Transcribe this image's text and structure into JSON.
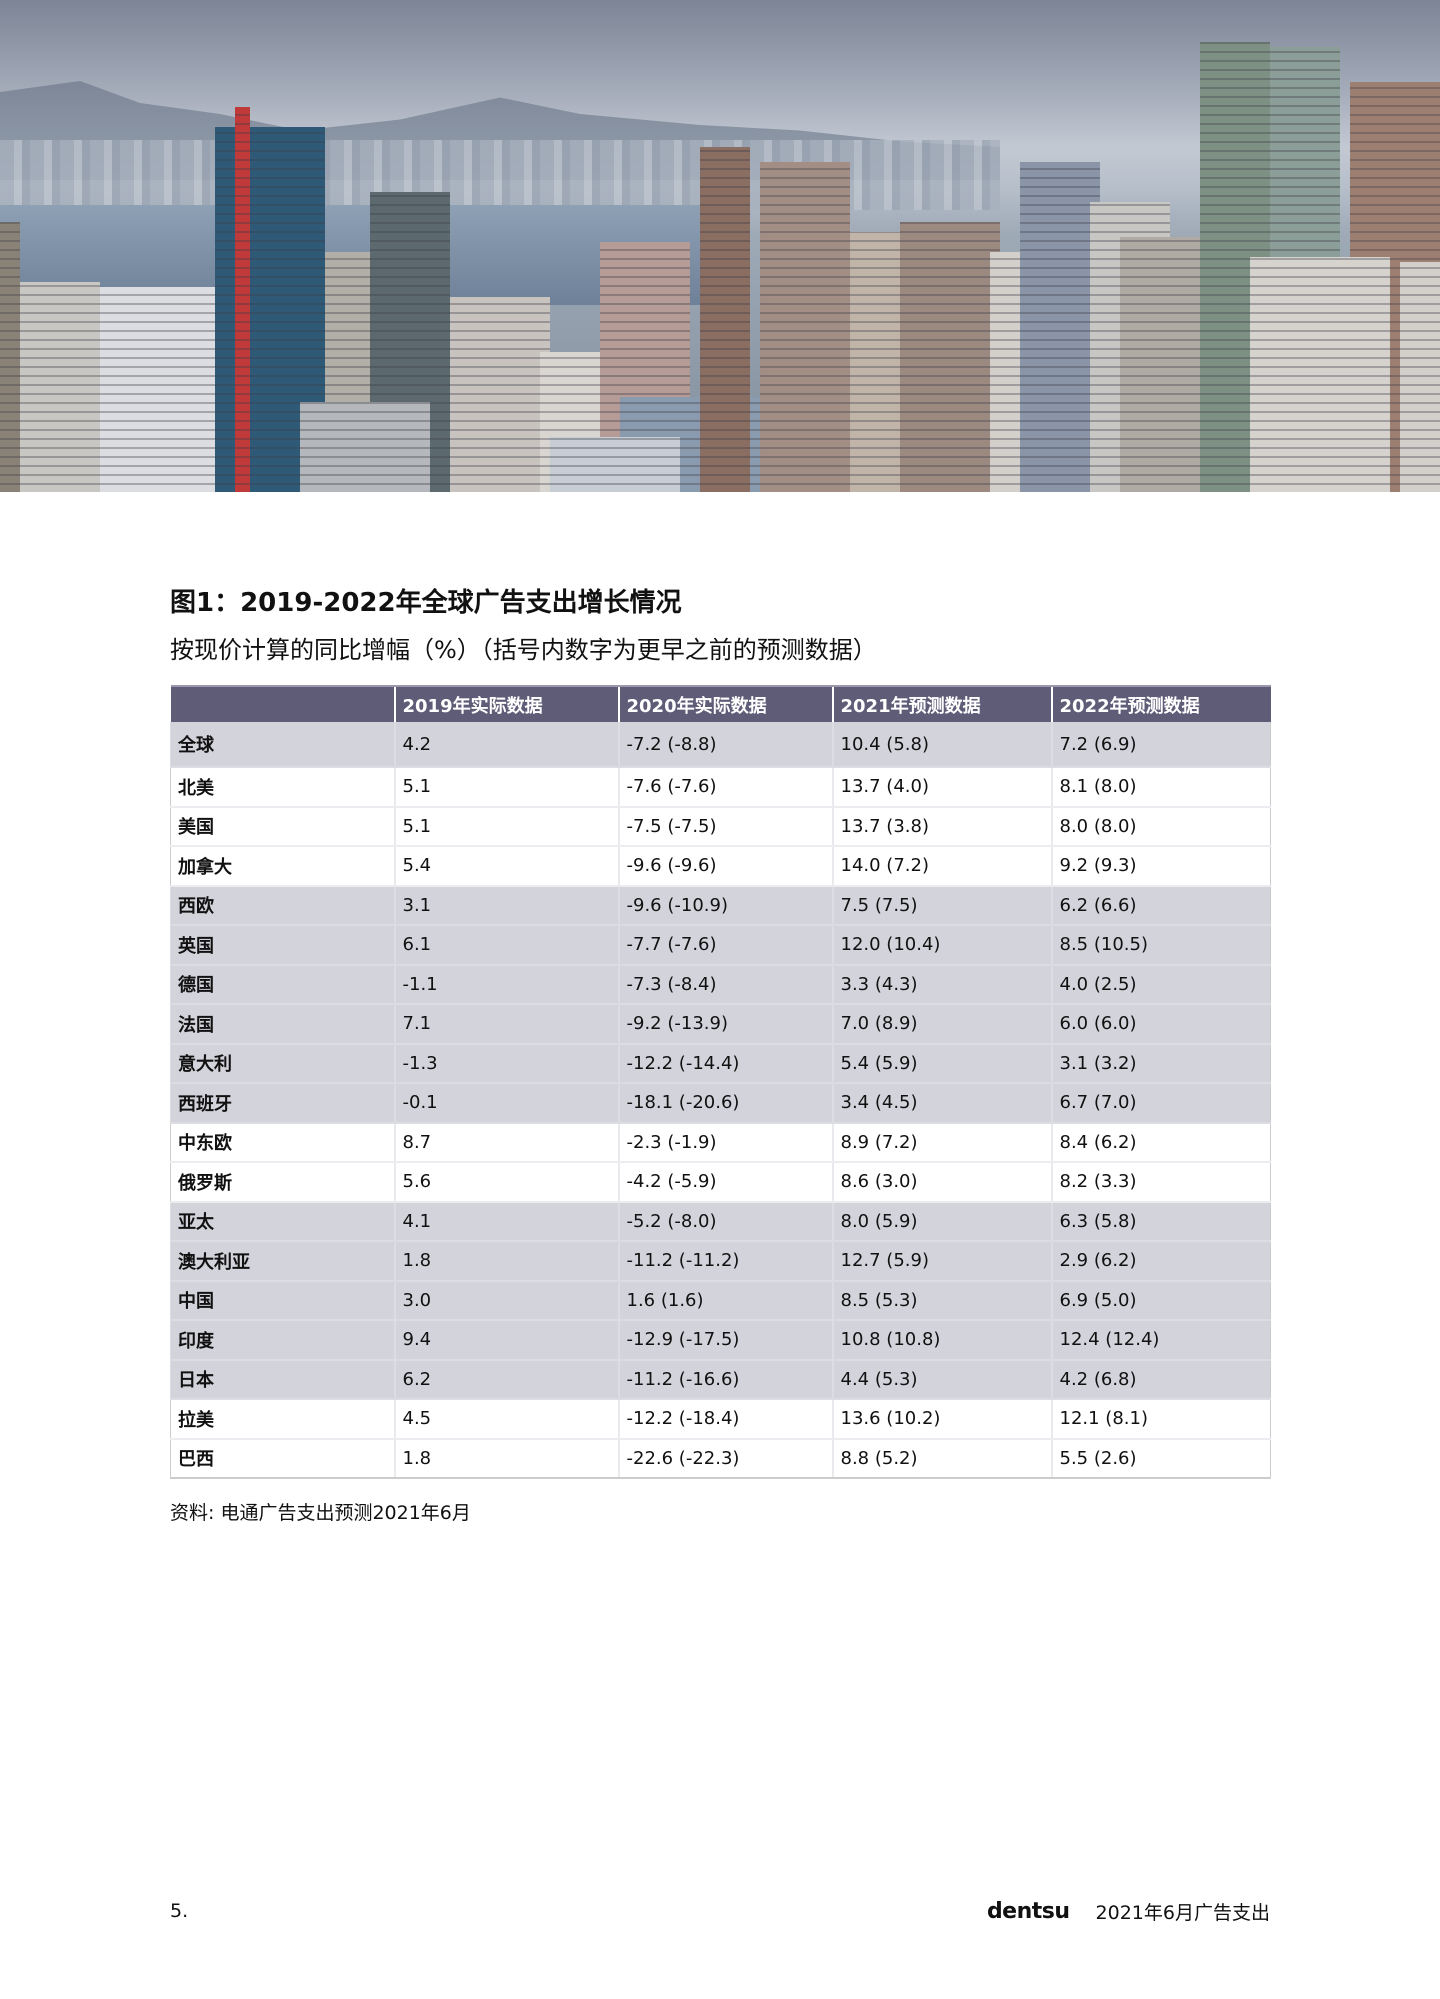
{
  "hero_image": {
    "description_icon": "city-skyline-photo"
  },
  "figure": {
    "title": "图1：2019-2022年全球广告支出增长情况",
    "subtitle": "按现价计算的同比增幅（%）（括号内数字为更早之前的预测数据）"
  },
  "table": {
    "headers": [
      "",
      "2019年实际数据",
      "2020年实际数据",
      "2021年预测数据",
      "2022年预测数据"
    ],
    "rows": [
      {
        "region": "全球",
        "shaded": true,
        "values": [
          "4.2",
          "-7.2 (-8.8)",
          "10.4 (5.8)",
          "7.2 (6.9)"
        ]
      },
      {
        "region": "北美",
        "shaded": false,
        "values": [
          "5.1",
          "-7.6 (-7.6)",
          "13.7 (4.0)",
          "8.1 (8.0)"
        ]
      },
      {
        "region": "美国",
        "shaded": false,
        "values": [
          "5.1",
          "-7.5 (-7.5)",
          "13.7 (3.8)",
          "8.0 (8.0)"
        ]
      },
      {
        "region": "加拿大",
        "shaded": false,
        "values": [
          "5.4",
          "-9.6 (-9.6)",
          "14.0 (7.2)",
          "9.2 (9.3)"
        ]
      },
      {
        "region": "西欧",
        "shaded": true,
        "values": [
          "3.1",
          "-9.6 (-10.9)",
          "7.5 (7.5)",
          "6.2 (6.6)"
        ]
      },
      {
        "region": "英国",
        "shaded": true,
        "values": [
          "6.1",
          "-7.7 (-7.6)",
          "12.0 (10.4)",
          "8.5 (10.5)"
        ]
      },
      {
        "region": "德国",
        "shaded": true,
        "values": [
          "-1.1",
          "-7.3 (-8.4)",
          "3.3 (4.3)",
          "4.0 (2.5)"
        ]
      },
      {
        "region": "法国",
        "shaded": true,
        "values": [
          "7.1",
          "-9.2 (-13.9)",
          "7.0 (8.9)",
          "6.0 (6.0)"
        ]
      },
      {
        "region": "意大利",
        "shaded": true,
        "values": [
          "-1.3",
          "-12.2 (-14.4)",
          "5.4 (5.9)",
          "3.1 (3.2)"
        ]
      },
      {
        "region": "西班牙",
        "shaded": true,
        "values": [
          "-0.1",
          "-18.1 (-20.6)",
          "3.4 (4.5)",
          "6.7 (7.0)"
        ]
      },
      {
        "region": "中东欧",
        "shaded": false,
        "values": [
          "8.7",
          "-2.3 (-1.9)",
          "8.9 (7.2)",
          "8.4 (6.2)"
        ]
      },
      {
        "region": "俄罗斯",
        "shaded": false,
        "values": [
          "5.6",
          "-4.2 (-5.9)",
          "8.6 (3.0)",
          "8.2 (3.3)"
        ]
      },
      {
        "region": "亚太",
        "shaded": true,
        "values": [
          "4.1",
          "-5.2 (-8.0)",
          "8.0 (5.9)",
          "6.3 (5.8)"
        ]
      },
      {
        "region": "澳大利亚",
        "shaded": true,
        "values": [
          "1.8",
          "-11.2 (-11.2)",
          "12.7 (5.9)",
          "2.9 (6.2)"
        ]
      },
      {
        "region": "中国",
        "shaded": true,
        "values": [
          "3.0",
          "1.6 (1.6)",
          "8.5 (5.3)",
          "6.9 (5.0)"
        ]
      },
      {
        "region": "印度",
        "shaded": true,
        "values": [
          "9.4",
          "-12.9 (-17.5)",
          "10.8 (10.8)",
          "12.4 (12.4)"
        ]
      },
      {
        "region": "日本",
        "shaded": true,
        "values": [
          "6.2",
          "-11.2 (-16.6)",
          "4.4 (5.3)",
          "4.2 (6.8)"
        ]
      },
      {
        "region": "拉美",
        "shaded": false,
        "values": [
          "4.5",
          "-12.2 (-18.4)",
          "13.6 (10.2)",
          "12.1 (8.1)"
        ]
      },
      {
        "region": "巴西",
        "shaded": false,
        "values": [
          "1.8",
          "-22.6 (-22.3)",
          "8.8 (5.2)",
          "5.5 (2.6)"
        ]
      }
    ]
  },
  "source": "资料: 电通广告支出预测2021年6月",
  "footer": {
    "page_number": "5.",
    "logo": "dentsu",
    "title": "2021年6月广告支出"
  },
  "colors": {
    "header_bg": "#5f5c78",
    "shaded_row": "#d3d3db"
  }
}
